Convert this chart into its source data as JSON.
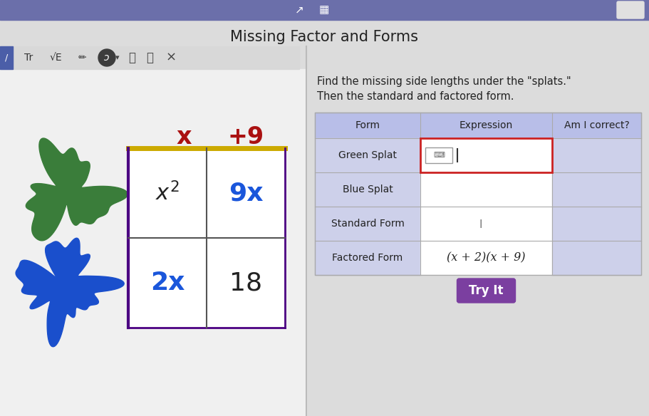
{
  "title": "Missing Factor and Forms",
  "bg_color": "#dcdcdc",
  "header_bg": "#6b6faa",
  "col_header_x": "x",
  "col_header_plus9": "+9",
  "col_header_color": "#aa1111",
  "grid_border_left_color": "#4b0082",
  "grid_border_top_color": "#ccaa00",
  "cell_color_black": "#222222",
  "cell_color_blue": "#1a56db",
  "green_splat_color": "#3a7d3a",
  "blue_splat_color": "#1a4fcc",
  "instruction_line1": "Find the missing side lengths under the \"splats.\"",
  "instruction_line2": "Then the standard and factored form.",
  "table_header_color": "#b8bee8",
  "table_row_lavender": "#cdd0ea",
  "table_row_white": "#ffffff",
  "table_cols": [
    "Form",
    "Expression",
    "Am I correct?"
  ],
  "table_rows": [
    "Green Splat",
    "Blue Splat",
    "Standard Form",
    "Factored Form"
  ],
  "factored_form_expr": "(x + 2)(x + 9)",
  "try_it_color": "#7b3fa0",
  "try_it_text_color": "#ffffff",
  "try_it_label": "Try It",
  "divider_color": "#bbbbbb",
  "toolbar_bg": "#d8d8d8",
  "toolbar_dark_btn": "#3d3d3d"
}
